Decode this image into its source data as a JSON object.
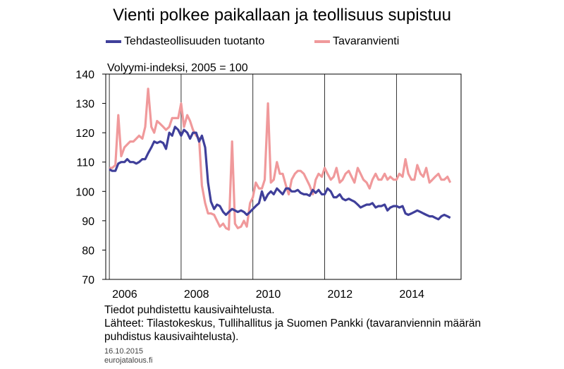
{
  "chart_data": {
    "type": "line",
    "title": "Vienti polkee paikallaan ja teollisuus supistuu",
    "ylabel": "Volyymi-indeksi, 2005 = 100",
    "xlabel": "",
    "ylim": [
      70,
      140
    ],
    "xlim": [
      2005.9,
      2015.8
    ],
    "yticks": [
      70,
      80,
      90,
      100,
      110,
      120,
      130,
      140
    ],
    "xticks": [
      2006,
      2008,
      2010,
      2012,
      2014
    ],
    "xtick_labels": [
      "2006",
      "2008",
      "2010",
      "2012",
      "2014"
    ],
    "grid": "vertical",
    "legend_position": "top",
    "series": [
      {
        "name": "Tehdasteollisuuden tuotanto",
        "color": "#3f3f9a",
        "x": [
          2006.0,
          2006.08,
          2006.17,
          2006.25,
          2006.33,
          2006.42,
          2006.5,
          2006.58,
          2006.67,
          2006.75,
          2006.83,
          2006.92,
          2007.0,
          2007.08,
          2007.17,
          2007.25,
          2007.33,
          2007.42,
          2007.5,
          2007.58,
          2007.67,
          2007.75,
          2007.83,
          2007.92,
          2008.0,
          2008.08,
          2008.17,
          2008.25,
          2008.33,
          2008.42,
          2008.5,
          2008.58,
          2008.67,
          2008.75,
          2008.83,
          2008.92,
          2009.0,
          2009.08,
          2009.17,
          2009.25,
          2009.33,
          2009.42,
          2009.5,
          2009.58,
          2009.67,
          2009.75,
          2009.83,
          2009.92,
          2010.0,
          2010.08,
          2010.17,
          2010.25,
          2010.33,
          2010.42,
          2010.5,
          2010.58,
          2010.67,
          2010.75,
          2010.83,
          2010.92,
          2011.0,
          2011.08,
          2011.17,
          2011.25,
          2011.33,
          2011.42,
          2011.5,
          2011.58,
          2011.67,
          2011.75,
          2011.83,
          2011.92,
          2012.0,
          2012.08,
          2012.17,
          2012.25,
          2012.33,
          2012.42,
          2012.5,
          2012.58,
          2012.67,
          2012.75,
          2012.83,
          2012.92,
          2013.0,
          2013.08,
          2013.17,
          2013.25,
          2013.33,
          2013.42,
          2013.5,
          2013.58,
          2013.67,
          2013.75,
          2013.83,
          2013.92,
          2014.0,
          2014.08,
          2014.17,
          2014.25,
          2014.33,
          2014.42,
          2014.5,
          2014.58,
          2014.67,
          2014.75,
          2014.83,
          2014.92,
          2015.0,
          2015.08,
          2015.17,
          2015.25,
          2015.33,
          2015.42,
          2015.5
        ],
        "values": [
          107.5,
          107,
          107,
          109.5,
          110,
          110,
          111,
          110,
          110,
          109.5,
          110,
          111,
          111,
          113,
          115,
          117,
          116.5,
          117,
          116.5,
          114.5,
          120,
          119,
          122,
          121,
          119,
          121,
          120,
          118,
          120,
          120,
          117,
          119,
          115,
          103,
          96.5,
          94,
          95.5,
          95,
          93,
          92,
          93,
          94,
          93.5,
          93,
          93.5,
          93,
          92,
          93,
          94,
          95,
          96,
          100,
          97,
          99,
          100,
          99,
          101,
          100,
          99,
          101,
          101,
          100,
          100,
          100.5,
          99.5,
          99,
          99,
          98.5,
          100.5,
          99.5,
          100.5,
          99,
          99,
          101,
          100,
          98,
          98,
          99,
          97.5,
          97,
          97.5,
          97,
          96.5,
          95.5,
          94.5,
          95,
          95.5,
          95.5,
          96,
          94.5,
          95,
          95,
          95.5,
          93.5,
          94.5,
          95,
          95,
          94.5,
          95,
          92.5,
          92,
          92.5,
          93,
          93.5,
          93,
          92.5,
          92,
          91.5,
          91.5,
          91,
          90.5,
          91.5,
          92,
          91.5,
          91
        ]
      },
      {
        "name": "Tavaranvienti",
        "color": "#f0999b",
        "x": [
          2006.0,
          2006.08,
          2006.17,
          2006.25,
          2006.33,
          2006.42,
          2006.5,
          2006.58,
          2006.67,
          2006.75,
          2006.83,
          2006.92,
          2007.0,
          2007.08,
          2007.17,
          2007.25,
          2007.33,
          2007.42,
          2007.5,
          2007.58,
          2007.67,
          2007.75,
          2007.83,
          2007.92,
          2008.0,
          2008.08,
          2008.17,
          2008.25,
          2008.33,
          2008.42,
          2008.5,
          2008.58,
          2008.67,
          2008.75,
          2008.83,
          2008.92,
          2009.0,
          2009.08,
          2009.17,
          2009.25,
          2009.33,
          2009.42,
          2009.5,
          2009.58,
          2009.67,
          2009.75,
          2009.83,
          2009.92,
          2010.0,
          2010.08,
          2010.17,
          2010.25,
          2010.33,
          2010.42,
          2010.5,
          2010.58,
          2010.67,
          2010.75,
          2010.83,
          2010.92,
          2011.0,
          2011.08,
          2011.17,
          2011.25,
          2011.33,
          2011.42,
          2011.5,
          2011.58,
          2011.67,
          2011.75,
          2011.83,
          2011.92,
          2012.0,
          2012.08,
          2012.17,
          2012.25,
          2012.33,
          2012.42,
          2012.5,
          2012.58,
          2012.67,
          2012.75,
          2012.83,
          2012.92,
          2013.0,
          2013.08,
          2013.17,
          2013.25,
          2013.33,
          2013.42,
          2013.5,
          2013.58,
          2013.67,
          2013.75,
          2013.83,
          2013.92,
          2014.0,
          2014.08,
          2014.17,
          2014.25,
          2014.33,
          2014.42,
          2014.5,
          2014.58,
          2014.67,
          2014.75,
          2014.83,
          2014.92,
          2015.0,
          2015.08,
          2015.17,
          2015.25,
          2015.33,
          2015.42,
          2015.5
        ],
        "values": [
          108,
          108,
          109,
          126,
          112,
          115,
          116,
          117,
          117,
          118,
          119,
          118,
          122,
          135,
          122,
          120,
          124,
          123,
          122,
          121,
          122,
          125,
          125,
          125,
          130,
          122,
          126,
          124,
          121,
          119,
          118,
          102,
          96,
          92.5,
          92.5,
          92,
          90,
          88,
          89,
          87.5,
          87,
          117,
          89,
          87.5,
          88,
          90,
          88,
          96,
          98,
          103,
          101,
          101,
          104,
          130,
          103,
          104,
          110,
          106,
          106,
          102,
          99,
          104,
          106,
          107,
          107,
          106,
          104,
          102,
          99,
          104,
          106,
          105,
          108,
          106,
          104,
          105,
          108,
          103,
          104,
          106,
          107,
          105,
          103,
          108,
          106,
          104,
          103,
          101,
          104,
          106,
          104,
          104,
          106,
          104,
          105,
          104,
          104,
          106,
          105,
          111,
          106,
          104,
          104,
          109,
          106,
          105,
          108,
          103,
          104,
          105,
          106,
          104,
          104,
          105,
          103
        ]
      }
    ]
  },
  "legend": {
    "items": [
      {
        "label": "Tehdasteollisuuden tuotanto",
        "color": "#3f3f9a"
      },
      {
        "label": "Tavaranvienti",
        "color": "#f0999b"
      }
    ]
  },
  "notes": {
    "line1": "Tiedot puhdistettu kausivaihtelusta.",
    "line2": "Lähteet: Tilastokeskus, Tullihallitus ja Suomen Pankki (tavaranviennin määrän puhdistus kausivaihtelusta)."
  },
  "footer": {
    "date": "16.10.2015",
    "site": "eurojatalous.fi"
  }
}
